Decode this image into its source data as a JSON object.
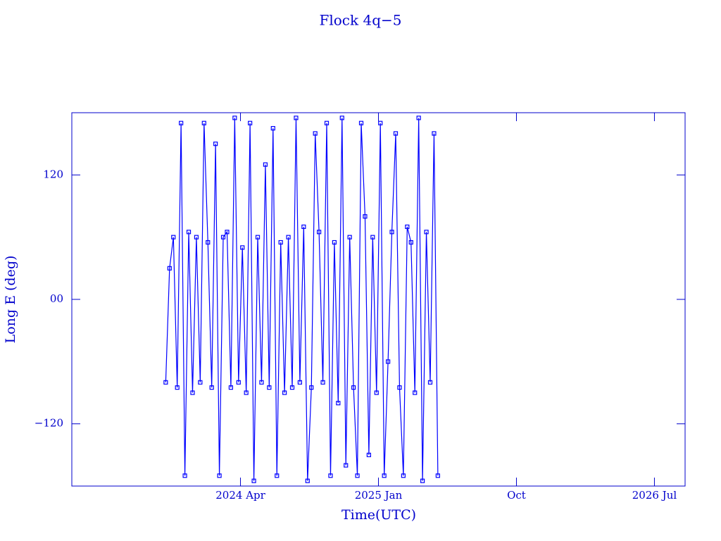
{
  "chart_data": {
    "type": "line",
    "title": "Flock 4q−5",
    "x_label": "Time(UTC)",
    "y_label": "Long E (deg)",
    "x": [
      "2023-11",
      "2023-11",
      "2023-11",
      "2023-11",
      "2023-12",
      "2023-12",
      "2023-12",
      "2023-12",
      "2024-01",
      "2024-01",
      "2024-01",
      "2024-01",
      "2024-02",
      "2024-02",
      "2024-02",
      "2024-02",
      "2024-03",
      "2024-03",
      "2024-03",
      "2024-03",
      "2024-04",
      "2024-04",
      "2024-04",
      "2024-04",
      "2024-05",
      "2024-05",
      "2024-05",
      "2024-05",
      "2024-06",
      "2024-06",
      "2024-06",
      "2024-06",
      "2024-07",
      "2024-07",
      "2024-07",
      "2024-07",
      "2024-08",
      "2024-08",
      "2024-08",
      "2024-08",
      "2024-09",
      "2024-09",
      "2024-09",
      "2024-09",
      "2024-10",
      "2024-10",
      "2024-10",
      "2024-10",
      "2024-11",
      "2024-11",
      "2024-11",
      "2024-11",
      "2024-12",
      "2024-12",
      "2024-12",
      "2024-12",
      "2025-01",
      "2025-01",
      "2025-01",
      "2025-01",
      "2025-02",
      "2025-02",
      "2025-02",
      "2025-02",
      "2025-03",
      "2025-03",
      "2025-03",
      "2025-03",
      "2025-04",
      "2025-04",
      "2025-04",
      "2025-04"
    ],
    "series": [
      {
        "name": "Long E",
        "color": "#0000ff",
        "values": [
          -80,
          30,
          60,
          -85,
          170,
          -170,
          65,
          -90,
          60,
          -80,
          170,
          55,
          -85,
          150,
          -170,
          60,
          65,
          -85,
          175,
          -80,
          50,
          -90,
          170,
          -175,
          60,
          -80,
          130,
          -85,
          165,
          -170,
          55,
          -90,
          60,
          -85,
          175,
          -80,
          70,
          -175,
          -85,
          160,
          65,
          -80,
          170,
          -170,
          55,
          -100,
          175,
          -160,
          60,
          -85,
          -170,
          170,
          80,
          -150,
          60,
          -90,
          170,
          -170,
          -60,
          65,
          160,
          -85,
          -170,
          70,
          55,
          -90,
          175,
          -175,
          65,
          -80,
          160,
          -170
        ]
      }
    ],
    "xlim": [
      "2023-05",
      "2026-09"
    ],
    "xticks": [
      {
        "value": "2024-04",
        "label": "2024 Apr"
      },
      {
        "value": "2025-01",
        "label": "2025 Jan"
      },
      {
        "value": "2025-10",
        "label": "Oct"
      },
      {
        "value": "2026-07",
        "label": "2026 Jul"
      }
    ],
    "ylim": [
      -180,
      180
    ],
    "yticks": [
      {
        "value": -120,
        "label": "−120"
      },
      {
        "value": 0,
        "label": "00"
      },
      {
        "value": 120,
        "label": "120"
      }
    ]
  }
}
